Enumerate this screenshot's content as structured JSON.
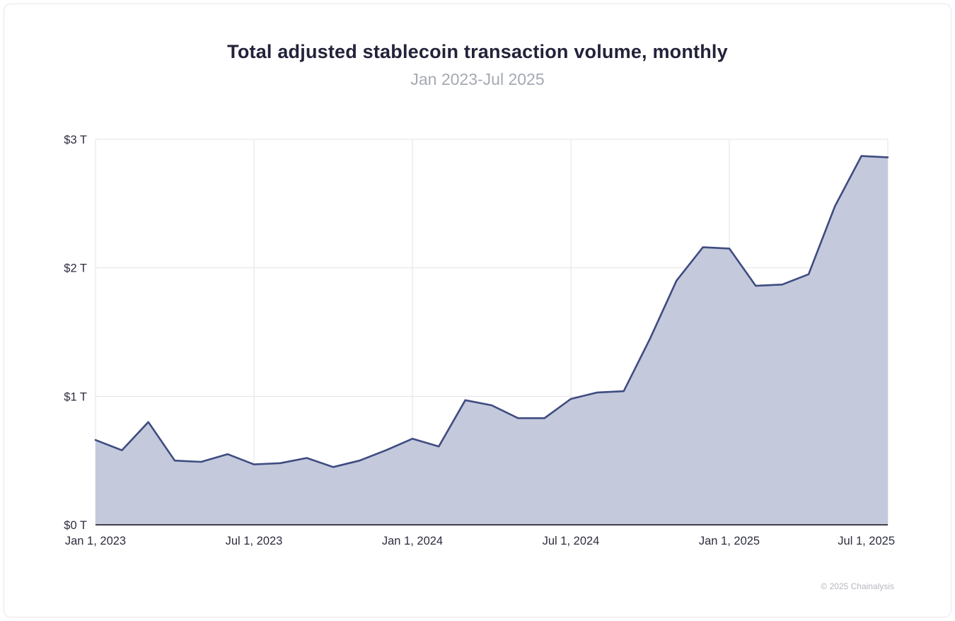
{
  "chart_data": {
    "type": "area",
    "title": "Total adjusted stablecoin transaction volume, monthly",
    "subtitle": "Jan 2023-Jul 2025",
    "attribution": "© 2025 Chainalysis",
    "xlabel": "",
    "ylabel": "",
    "unit": "$ trillions",
    "ylim": [
      0,
      3
    ],
    "grid": true,
    "legend": "none",
    "line_color": "#3e4c80",
    "fill_color": "#c4c9dc",
    "grid_color": "#e3e3e8",
    "axis_color": "#404049",
    "tick_text_color": "#2d2d40",
    "categories": [
      "Jan 2023",
      "Feb 2023",
      "Mar 2023",
      "Apr 2023",
      "May 2023",
      "Jun 2023",
      "Jul 2023",
      "Aug 2023",
      "Sep 2023",
      "Oct 2023",
      "Nov 2023",
      "Dec 2023",
      "Jan 2024",
      "Feb 2024",
      "Mar 2024",
      "Apr 2024",
      "May 2024",
      "Jun 2024",
      "Jul 2024",
      "Aug 2024",
      "Sep 2024",
      "Oct 2024",
      "Nov 2024",
      "Dec 2024",
      "Jan 2025",
      "Feb 2025",
      "Mar 2025",
      "Apr 2025",
      "May 2025",
      "Jun 2025",
      "Jul 2025"
    ],
    "values": [
      0.66,
      0.58,
      0.8,
      0.5,
      0.49,
      0.55,
      0.47,
      0.48,
      0.52,
      0.45,
      0.5,
      0.58,
      0.67,
      0.61,
      0.97,
      0.93,
      0.83,
      0.83,
      0.98,
      1.03,
      1.04,
      1.45,
      1.9,
      2.16,
      2.15,
      1.86,
      1.87,
      1.95,
      2.48,
      2.87,
      2.86
    ],
    "ytick_labels": [
      "$0 T",
      "$1 T",
      "$2 T",
      "$3 T"
    ],
    "xticks": [
      {
        "index": 0,
        "label": "Jan 1, 2023"
      },
      {
        "index": 6,
        "label": "Jul 1, 2023"
      },
      {
        "index": 12,
        "label": "Jan 1, 2024"
      },
      {
        "index": 18,
        "label": "Jul 1, 2024"
      },
      {
        "index": 24,
        "label": "Jan 1, 2025"
      },
      {
        "index": 30,
        "label": "Jul 1, 2025"
      }
    ]
  }
}
